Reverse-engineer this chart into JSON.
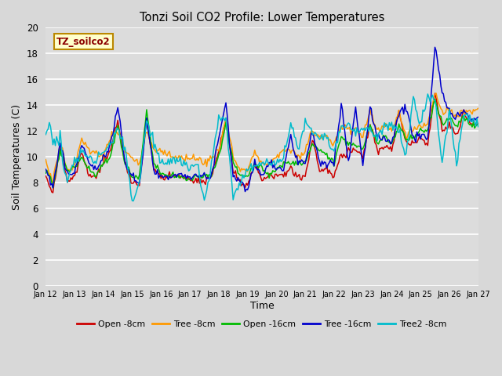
{
  "title": "Tonzi Soil CO2 Profile: Lower Temperatures",
  "xlabel": "Time",
  "ylabel": "Soil Temperatures (C)",
  "watermark": "TZ_soilco2",
  "ylim": [
    0,
    20
  ],
  "yticks": [
    0,
    2,
    4,
    6,
    8,
    10,
    12,
    14,
    16,
    18,
    20
  ],
  "bg_color": "#dcdcdc",
  "grid_color": "#ffffff",
  "series": {
    "open_8cm": {
      "color": "#cc0000",
      "label": "Open -8cm"
    },
    "tree_8cm": {
      "color": "#ff9900",
      "label": "Tree -8cm"
    },
    "open_16cm": {
      "color": "#00bb00",
      "label": "Open -16cm"
    },
    "tree_16cm": {
      "color": "#0000cc",
      "label": "Tree -16cm"
    },
    "tree2_8cm": {
      "color": "#00bbcc",
      "label": "Tree2 -8cm"
    }
  },
  "xtick_labels": [
    "Jan 12",
    "Jan 13",
    "Jan 14",
    "Jan 15",
    "Jan 16",
    "Jan 17",
    "Jan 18",
    "Jan 19",
    "Jan 20",
    "Jan 21",
    "Jan 22",
    "Jan 23",
    "Jan 24",
    "Jan 25",
    "Jan 26",
    "Jan 27"
  ],
  "xtick_positions": [
    0,
    24,
    48,
    72,
    96,
    120,
    144,
    168,
    192,
    216,
    240,
    264,
    288,
    312,
    336,
    360
  ]
}
